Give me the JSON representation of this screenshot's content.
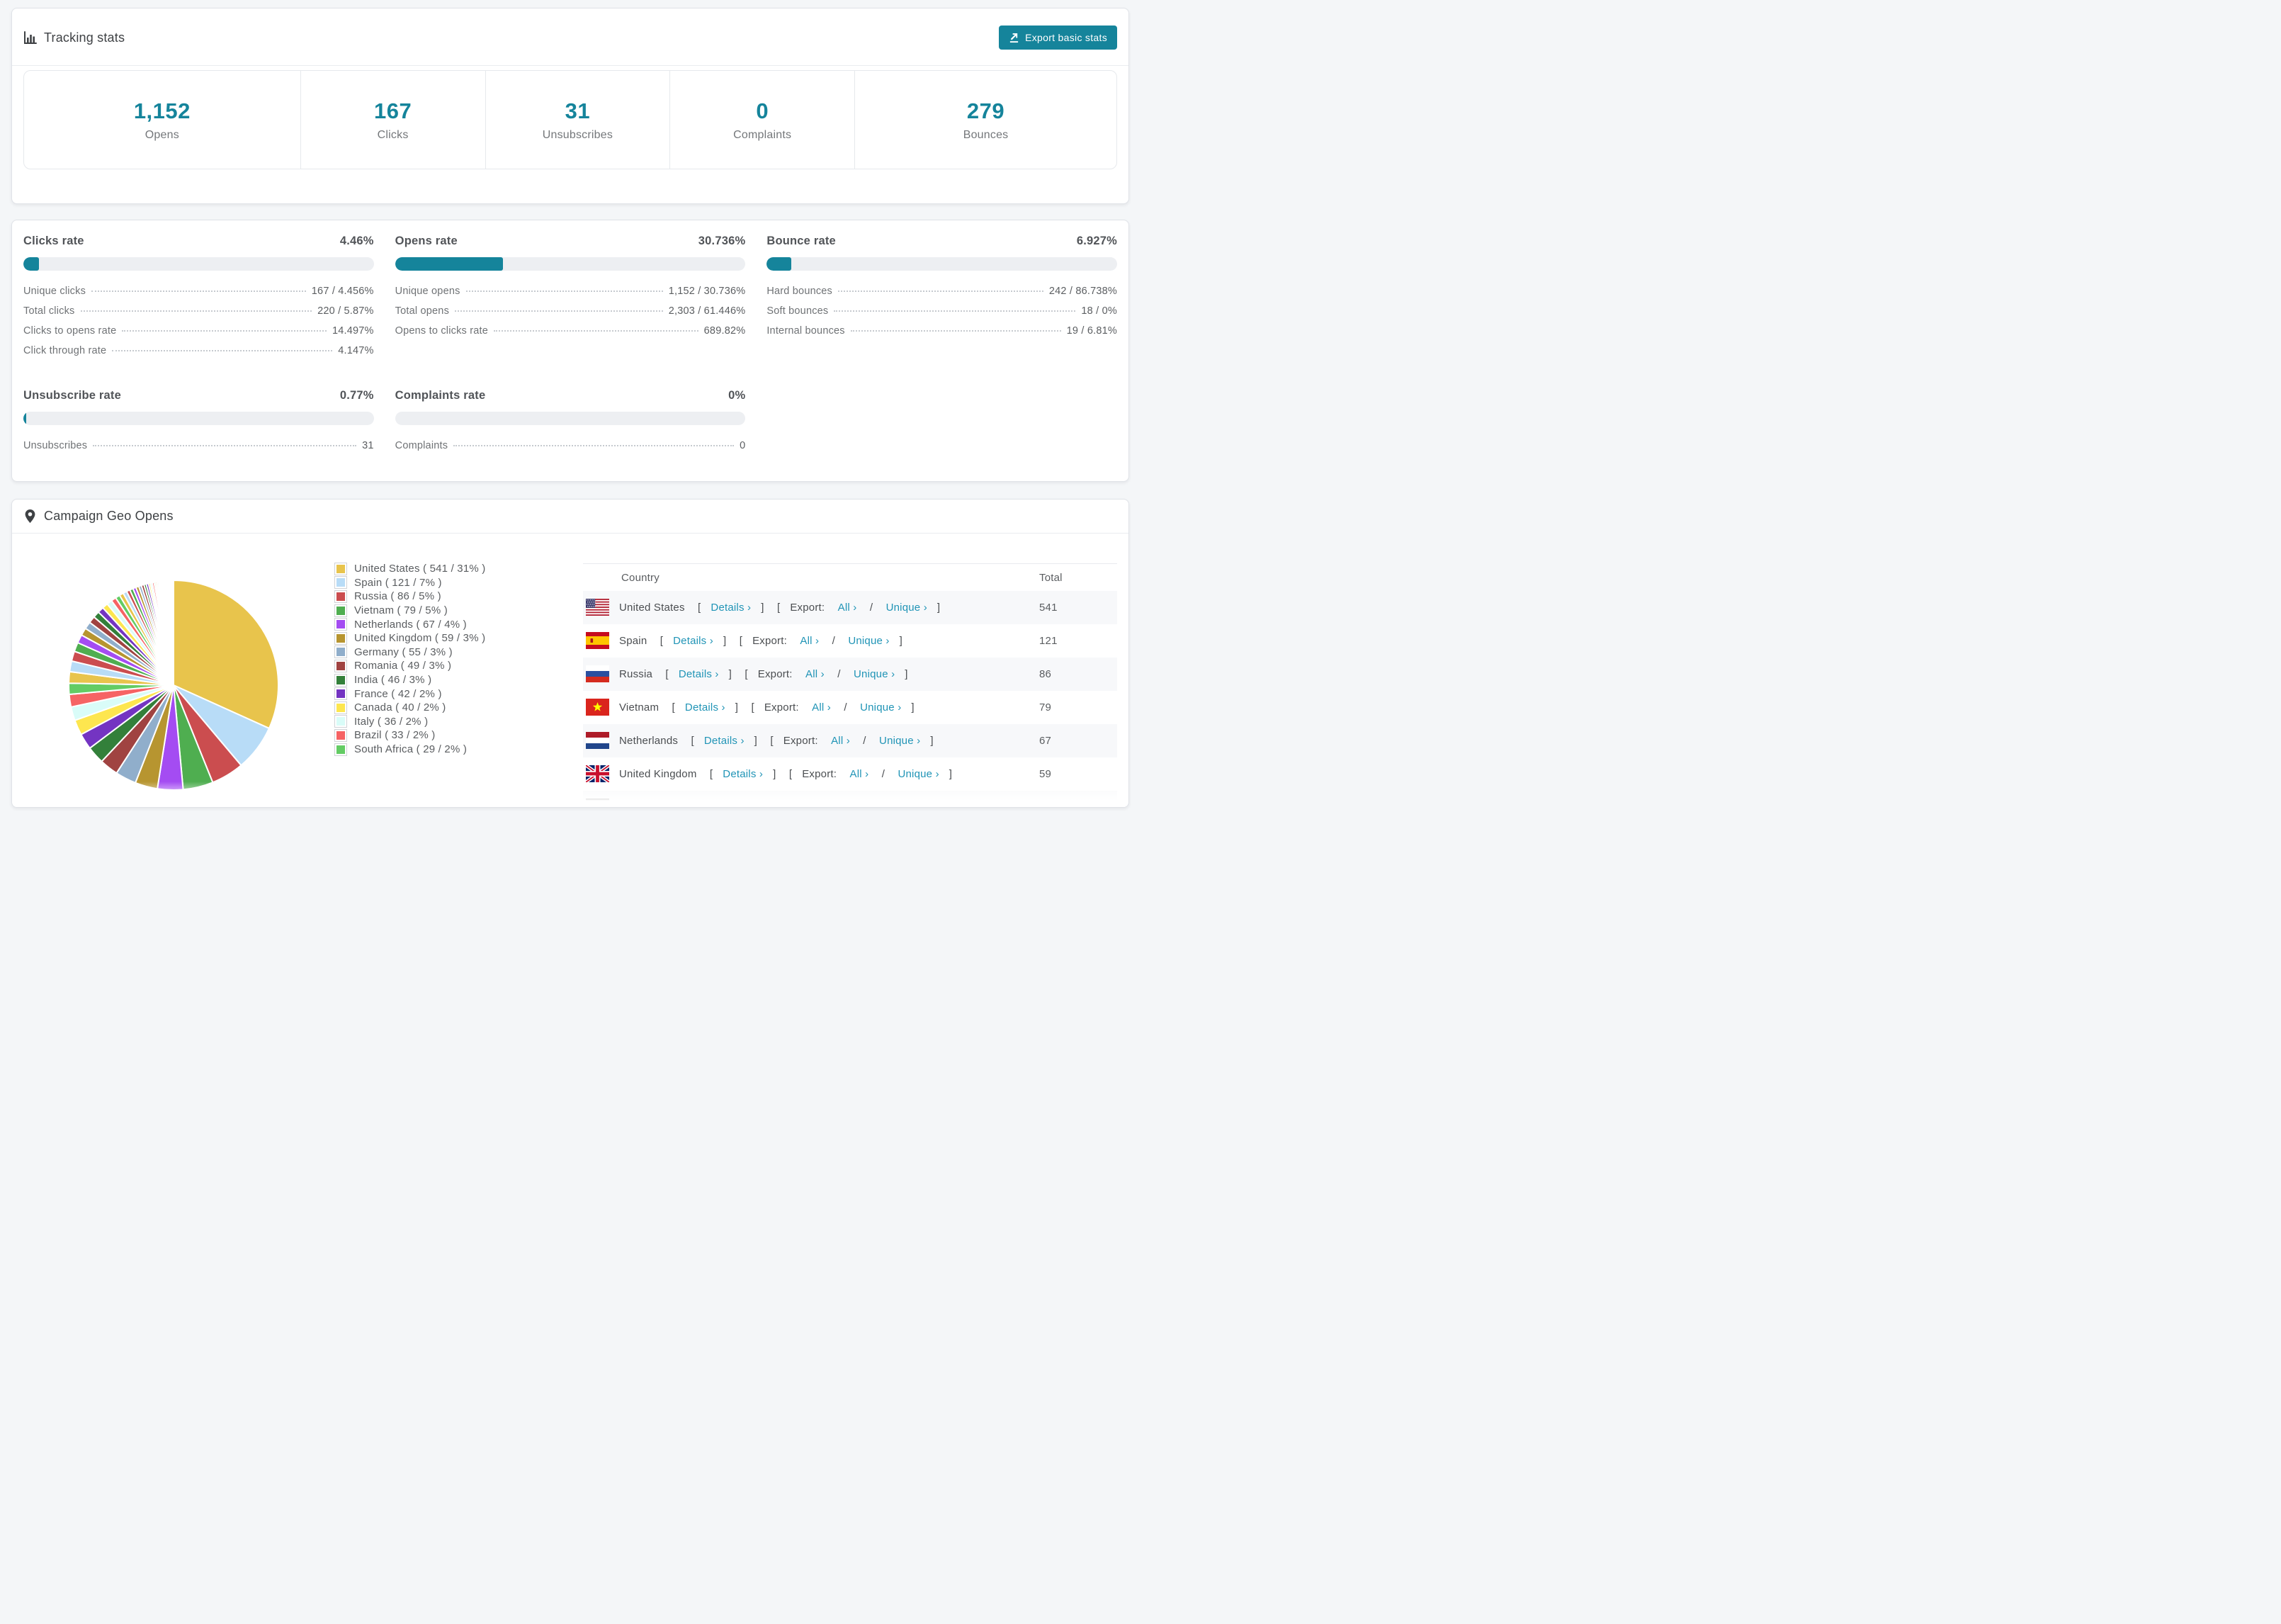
{
  "page": {
    "colors": {
      "accent": "#15849b",
      "link": "#2094b6",
      "track": "#edeff2"
    }
  },
  "tracking": {
    "title": "Tracking stats",
    "export_button": "Export basic stats",
    "stats": [
      {
        "value": "1,152",
        "label": "Opens"
      },
      {
        "value": "167",
        "label": "Clicks"
      },
      {
        "value": "31",
        "label": "Unsubscribes"
      },
      {
        "value": "0",
        "label": "Complaints"
      },
      {
        "value": "279",
        "label": "Bounces"
      }
    ]
  },
  "rates": [
    {
      "title": "Clicks rate",
      "value": "4.46%",
      "pct": 4.46,
      "rows": [
        {
          "label": "Unique clicks",
          "value": "167 / 4.456%"
        },
        {
          "label": "Total clicks",
          "value": "220 / 5.87%"
        },
        {
          "label": "Clicks to opens rate",
          "value": "14.497%"
        },
        {
          "label": "Click through rate",
          "value": "4.147%"
        }
      ]
    },
    {
      "title": "Opens rate",
      "value": "30.736%",
      "pct": 30.736,
      "rows": [
        {
          "label": "Unique opens",
          "value": "1,152 / 30.736%"
        },
        {
          "label": "Total opens",
          "value": "2,303 / 61.446%"
        },
        {
          "label": "Opens to clicks rate",
          "value": "689.82%"
        }
      ]
    },
    {
      "title": "Bounce rate",
      "value": "6.927%",
      "pct": 6.927,
      "rows": [
        {
          "label": "Hard bounces",
          "value": "242 / 86.738%"
        },
        {
          "label": "Soft bounces",
          "value": "18 / 0%"
        },
        {
          "label": "Internal bounces",
          "value": "19 / 6.81%"
        }
      ]
    },
    {
      "title": "Unsubscribe rate",
      "value": "0.77%",
      "pct": 0.77,
      "rows": [
        {
          "label": "Unsubscribes",
          "value": "31"
        }
      ]
    },
    {
      "title": "Complaints rate",
      "value": "0%",
      "pct": 0,
      "rows": [
        {
          "label": "Complaints",
          "value": "0"
        }
      ]
    }
  ],
  "geo": {
    "title": "Campaign Geo Opens",
    "chart_data": {
      "type": "pie",
      "title": "Campaign Geo Opens",
      "legend_position": "right",
      "start_angle_deg": -90,
      "direction": "clockwise",
      "series": [
        {
          "name": "United States",
          "value": 541,
          "pct": 31
        },
        {
          "name": "Spain",
          "value": 121,
          "pct": 7
        },
        {
          "name": "Russia",
          "value": 86,
          "pct": 5
        },
        {
          "name": "Vietnam",
          "value": 79,
          "pct": 5
        },
        {
          "name": "Netherlands",
          "value": 67,
          "pct": 4
        },
        {
          "name": "United Kingdom",
          "value": 59,
          "pct": 3
        },
        {
          "name": "Germany",
          "value": 55,
          "pct": 3
        },
        {
          "name": "Romania",
          "value": 49,
          "pct": 3
        },
        {
          "name": "India",
          "value": 46,
          "pct": 3
        },
        {
          "name": "France",
          "value": 42,
          "pct": 2
        },
        {
          "name": "Canada",
          "value": 40,
          "pct": 2
        },
        {
          "name": "Italy",
          "value": 36,
          "pct": 2
        },
        {
          "name": "Brazil",
          "value": 33,
          "pct": 2
        },
        {
          "name": "South Africa",
          "value": 29,
          "pct": 2
        }
      ],
      "others_values": [
        30,
        28,
        26,
        24,
        22,
        20,
        19,
        18,
        17,
        16,
        15,
        14,
        13,
        12,
        11,
        10,
        9,
        9,
        8,
        8,
        7,
        7,
        6,
        6,
        5,
        5,
        5,
        4,
        4,
        4,
        3,
        3,
        3,
        3,
        2,
        2,
        2,
        2,
        2,
        2,
        1,
        1,
        1,
        1,
        1,
        1,
        1,
        1,
        1,
        1,
        1,
        1,
        0.8,
        0.6,
        0.5,
        0.4,
        0.3,
        0.2
      ],
      "palette": [
        "#e8c44c",
        "#b8dcf7",
        "#cb4d4f",
        "#4fae50",
        "#a44cf2",
        "#b79530",
        "#90aecb",
        "#a04341",
        "#33803a",
        "#7434c2",
        "#fde64f",
        "#d9fcf8",
        "#f66364",
        "#63cc64"
      ]
    },
    "table": {
      "headers": [
        "Country",
        "Total"
      ],
      "link_labels": {
        "details": "Details",
        "export": "Export:",
        "all": "All",
        "unique": "Unique",
        "chevron": "›",
        "open_bracket": "[",
        "close_bracket": "]",
        "slash": "/"
      },
      "rows": [
        {
          "flag": "us",
          "name": "United States",
          "total": "541"
        },
        {
          "flag": "es",
          "name": "Spain",
          "total": "121"
        },
        {
          "flag": "ru",
          "name": "Russia",
          "total": "86"
        },
        {
          "flag": "vn",
          "name": "Vietnam",
          "total": "79"
        },
        {
          "flag": "nl",
          "name": "Netherlands",
          "total": "67"
        },
        {
          "flag": "gb",
          "name": "United Kingdom",
          "total": "59"
        },
        {
          "flag": "de",
          "name": "",
          "total": "",
          "partial": true
        }
      ]
    }
  }
}
